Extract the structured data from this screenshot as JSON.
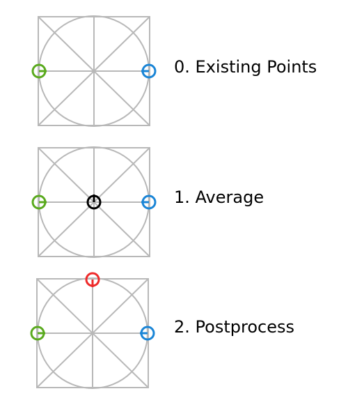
{
  "colors": {
    "guide": "#b8b8b8",
    "green": "#5aaa1e",
    "blue": "#1a85d6",
    "black": "#000000",
    "red": "#ee2a2a"
  },
  "steps": [
    {
      "label": "0. Existing Points",
      "points": [
        {
          "pos": "left",
          "color": "green",
          "tick": "right"
        },
        {
          "pos": "right",
          "color": "blue",
          "tick": "left"
        }
      ]
    },
    {
      "label": "1. Average",
      "points": [
        {
          "pos": "left",
          "color": "green",
          "tick": "right"
        },
        {
          "pos": "right",
          "color": "blue",
          "tick": "left"
        },
        {
          "pos": "center",
          "color": "black",
          "tick": "up"
        }
      ]
    },
    {
      "label": "2. Postprocess",
      "points": [
        {
          "pos": "left",
          "color": "green",
          "tick": "right"
        },
        {
          "pos": "right",
          "color": "blue",
          "tick": "left"
        },
        {
          "pos": "top",
          "color": "red",
          "tick": "down"
        }
      ]
    }
  ]
}
